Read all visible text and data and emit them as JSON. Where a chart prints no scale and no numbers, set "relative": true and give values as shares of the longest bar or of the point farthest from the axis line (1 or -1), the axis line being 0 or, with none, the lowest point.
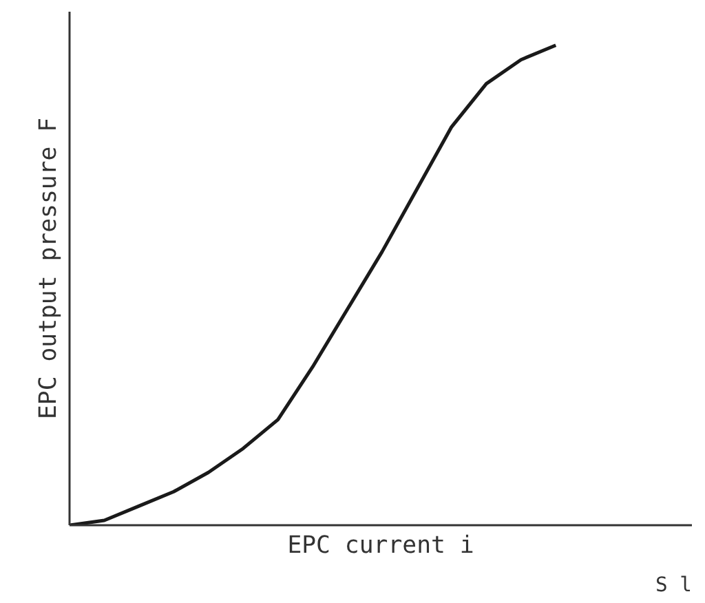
{
  "chart_data": {
    "type": "line",
    "xlabel": "EPC current i",
    "ylabel": "EPC output pressure F",
    "relative": true,
    "categories": [
      null,
      null,
      null,
      null,
      null,
      null,
      null,
      null,
      null,
      null,
      null,
      null,
      null,
      null,
      null
    ],
    "series": [
      {
        "color": "#1a1a1a",
        "values": [
          0,
          0.01,
          0.04,
          0.07,
          0.11,
          0.16,
          0.22,
          0.33,
          0.45,
          0.57,
          0.7,
          0.83,
          0.92,
          0.97,
          1.0
        ]
      }
    ],
    "annotations": [
      "S l"
    ]
  }
}
